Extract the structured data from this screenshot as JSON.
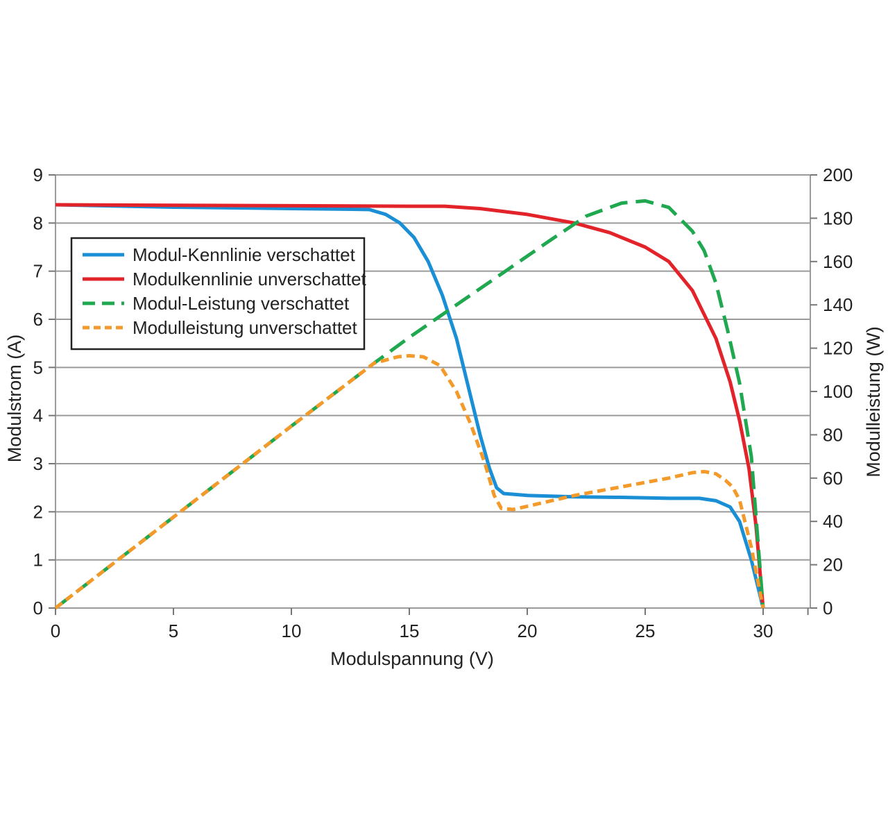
{
  "chart_data": {
    "type": "line",
    "title": "",
    "xlabel": "Modulspannung (V)",
    "ylabel": "Modulstrom (A)",
    "y2label": "Modulleistung (W)",
    "xlim": [
      0,
      32
    ],
    "ylim": [
      0,
      9
    ],
    "y2lim": [
      0,
      200
    ],
    "x_ticks": [
      "0",
      "5",
      "10",
      "15",
      "20",
      "25",
      "30"
    ],
    "y_ticks": [
      "0",
      "1",
      "2",
      "3",
      "4",
      "5",
      "6",
      "7",
      "8",
      "9"
    ],
    "y2_ticks": [
      "0",
      "20",
      "40",
      "60",
      "80",
      "100",
      "120",
      "140",
      "160",
      "180",
      "200"
    ],
    "grid": "horizontal",
    "legend_position": "top-left",
    "series": [
      {
        "name": "Modul-Kennlinie verschattet",
        "axis": "left",
        "color": "#1a8fd6",
        "style": "solid",
        "x": [
          0,
          5,
          10,
          12,
          13.3,
          14,
          14.6,
          15.2,
          15.8,
          16.4,
          17,
          17.5,
          18,
          18.4,
          18.7,
          19,
          20,
          22,
          24,
          26,
          27.3,
          28,
          28.6,
          29,
          29.5,
          30
        ],
        "y": [
          8.38,
          8.33,
          8.3,
          8.29,
          8.28,
          8.18,
          8.0,
          7.7,
          7.2,
          6.5,
          5.6,
          4.6,
          3.6,
          2.9,
          2.5,
          2.38,
          2.34,
          2.31,
          2.3,
          2.28,
          2.28,
          2.23,
          2.1,
          1.8,
          1.0,
          0.0
        ]
      },
      {
        "name": "Modulkennlinie unverschattet",
        "axis": "left",
        "color": "#e2232a",
        "style": "solid",
        "x": [
          0,
          5,
          10,
          15,
          16.5,
          18,
          20,
          22,
          23.5,
          25,
          26,
          27,
          28,
          28.6,
          29,
          29.4,
          29.7,
          30
        ],
        "y": [
          8.38,
          8.37,
          8.36,
          8.35,
          8.35,
          8.3,
          8.18,
          8.0,
          7.8,
          7.5,
          7.2,
          6.6,
          5.6,
          4.7,
          3.9,
          2.9,
          1.7,
          0.0
        ]
      },
      {
        "name": "Modul-Leistung verschattet",
        "axis": "right",
        "color": "#1fa84f",
        "style": "dashed",
        "x": [
          0,
          5,
          10,
          13.5,
          15,
          17,
          19,
          21,
          22.5,
          24,
          25,
          26,
          27,
          27.5,
          28,
          28.5,
          29,
          29.5,
          30
        ],
        "y": [
          0,
          42,
          84,
          113,
          125,
          140,
          155,
          170,
          181,
          187,
          188,
          185,
          174,
          165,
          150,
          128,
          104,
          70,
          0
        ]
      },
      {
        "name": "Modulleistung unverschattet",
        "axis": "right",
        "color": "#f39a2b",
        "style": "dotted",
        "x": [
          0,
          5,
          10,
          13.5,
          14.5,
          15,
          15.6,
          16.3,
          17,
          17.6,
          18.2,
          18.6,
          18.9,
          19.4,
          20,
          22,
          24,
          26,
          27,
          27.5,
          28,
          28.4,
          28.7,
          29,
          29.5,
          30
        ],
        "y": [
          0,
          42,
          84,
          113,
          116,
          116.5,
          116,
          112,
          100,
          85,
          67,
          52,
          46,
          45.5,
          47,
          52,
          56,
          60,
          62.5,
          63,
          62,
          59,
          56,
          50,
          28,
          0
        ]
      }
    ]
  }
}
